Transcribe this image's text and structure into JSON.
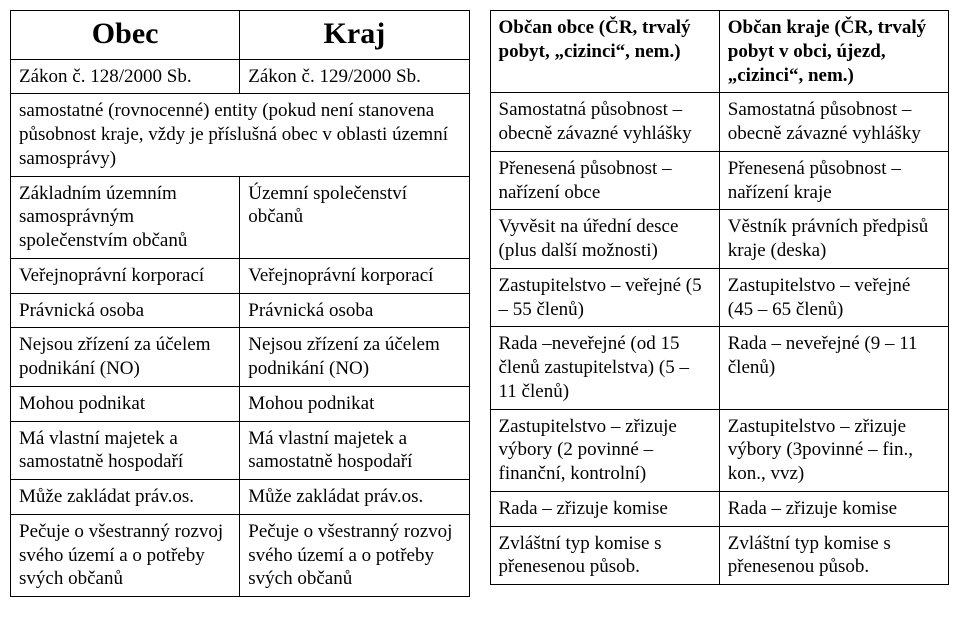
{
  "left": {
    "header": {
      "c1": "Obec",
      "c2": "Kraj"
    },
    "rows": [
      {
        "c1": "Zákon č. 128/2000 Sb.",
        "c2": "Zákon č. 129/2000 Sb."
      },
      {
        "span": true,
        "c1": "samostatné (rovnocenné) entity (pokud není stanovena působnost kraje, vždy je příslušná obec v oblasti územní samosprávy)"
      },
      {
        "c1": "Základním územním samosprávným společenstvím občanů",
        "c2": "Územní společenství občanů"
      },
      {
        "c1": "Veřejnoprávní korporací",
        "c2": "Veřejnoprávní korporací"
      },
      {
        "c1": "Právnická osoba",
        "c2": "Právnická osoba"
      },
      {
        "c1": "Nejsou zřízení za účelem podnikání (NO)",
        "c2": "Nejsou zřízení za účelem podnikání (NO)"
      },
      {
        "c1": "Mohou podnikat",
        "c2": "Mohou podnikat"
      },
      {
        "c1": "Má vlastní majetek a samostatně hospodaří",
        "c2": "Má vlastní majetek a samostatně hospodaří"
      },
      {
        "c1": "Může zakládat práv.os.",
        "c2": "Může zakládat práv.os."
      },
      {
        "c1": "Pečuje o všestranný rozvoj svého území a o potřeby svých občanů",
        "c2": "Pečuje o všestranný rozvoj svého území a o potřeby svých občanů"
      }
    ]
  },
  "right": {
    "rows": [
      {
        "c1": "Občan obce (ČR, trvalý pobyt, „cizinci“, nem.)",
        "c2": "Občan kraje (ČR, trvalý pobyt v obci, újezd, „cizinci“, nem.)",
        "bold": true
      },
      {
        "c1": "Samostatná působnost – obecně závazné vyhlášky",
        "c2": "Samostatná působnost – obecně závazné vyhlášky"
      },
      {
        "c1": "Přenesená působnost – nařízení obce",
        "c2": "Přenesená působnost – nařízení kraje"
      },
      {
        "c1": "Vyvěsit na úřední desce (plus další možnosti)",
        "c2": "Věstník právních předpisů kraje (deska)"
      },
      {
        "c1": "Zastupitelstvo – veřejné (5 – 55 členů)",
        "c2": "Zastupitelstvo – veřejné (45 – 65 členů)"
      },
      {
        "c1": "Rada –neveřejné (od 15 členů zastupitelstva) (5 – 11 členů)",
        "c2": "Rada – neveřejné (9 – 11 členů)"
      },
      {
        "c1": "Zastupitelstvo – zřizuje výbory (2 povinné – finanční, kontrolní)",
        "c2": "Zastupitelstvo – zřizuje výbory (3povinné – fin., kon., vvz)"
      },
      {
        "c1": "Rada – zřizuje komise",
        "c2": "Rada – zřizuje komise"
      },
      {
        "c1": "Zvláštní typ komise s přenesenou působ.",
        "c2": "Zvláštní typ komise s přenesenou působ."
      }
    ]
  }
}
